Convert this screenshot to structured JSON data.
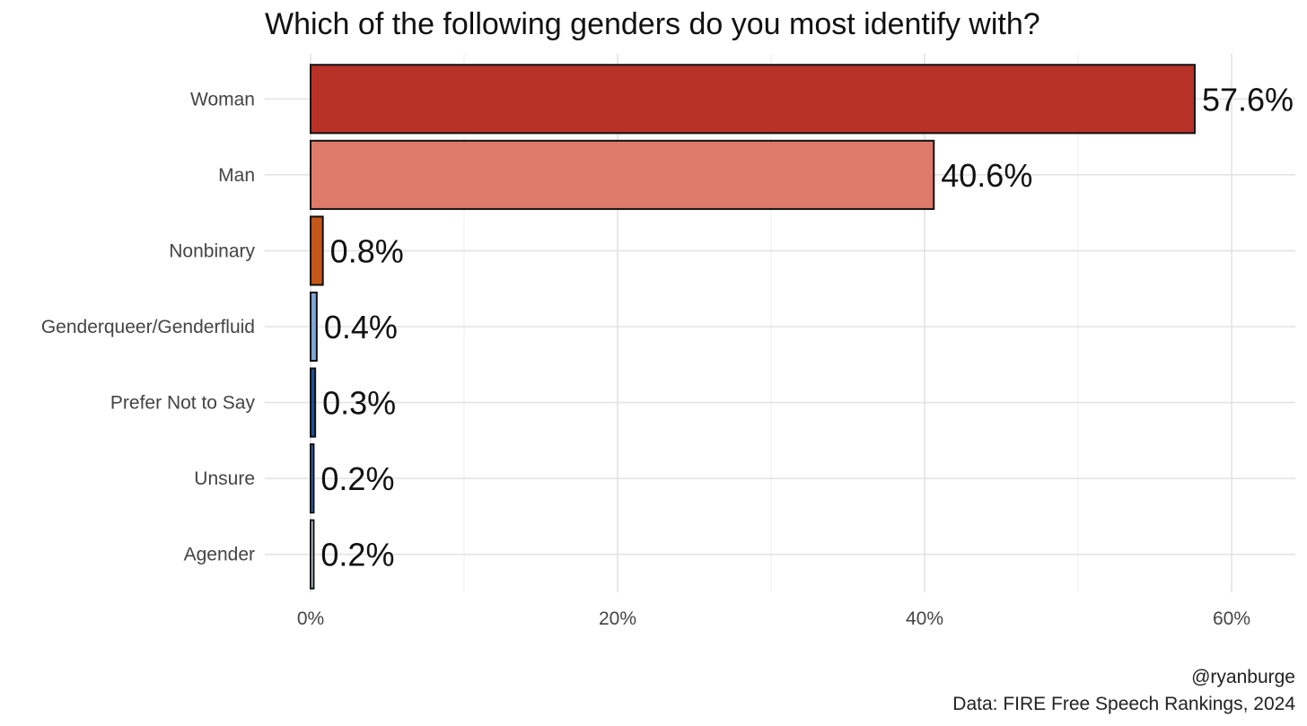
{
  "chart_data": {
    "type": "bar",
    "orientation": "horizontal",
    "title": "Which of the following genders do you most identify with?",
    "categories": [
      "Woman",
      "Man",
      "Nonbinary",
      "Genderqueer/Genderfluid",
      "Prefer Not to Say",
      "Unsure",
      "Agender"
    ],
    "values": [
      57.6,
      40.6,
      0.8,
      0.4,
      0.3,
      0.2,
      0.2
    ],
    "value_labels": [
      "57.6%",
      "40.6%",
      "0.8%",
      "0.4%",
      "0.3%",
      "0.2%",
      "0.2%"
    ],
    "colors": [
      "#b83227",
      "#de7a69",
      "#c4571a",
      "#7fa7d9",
      "#1f4f99",
      "#3b6fc2",
      "#cfe0e6"
    ],
    "x_ticks": [
      0,
      20,
      40,
      60
    ],
    "x_tick_labels": [
      "0%",
      "20%",
      "40%",
      "60%"
    ],
    "xlim": [
      -3,
      64
    ],
    "xlabel": "",
    "ylabel": "",
    "grid": true,
    "caption_lines": [
      "@ryanburge",
      "Data: FIRE Free Speech Rankings, 2024"
    ]
  }
}
